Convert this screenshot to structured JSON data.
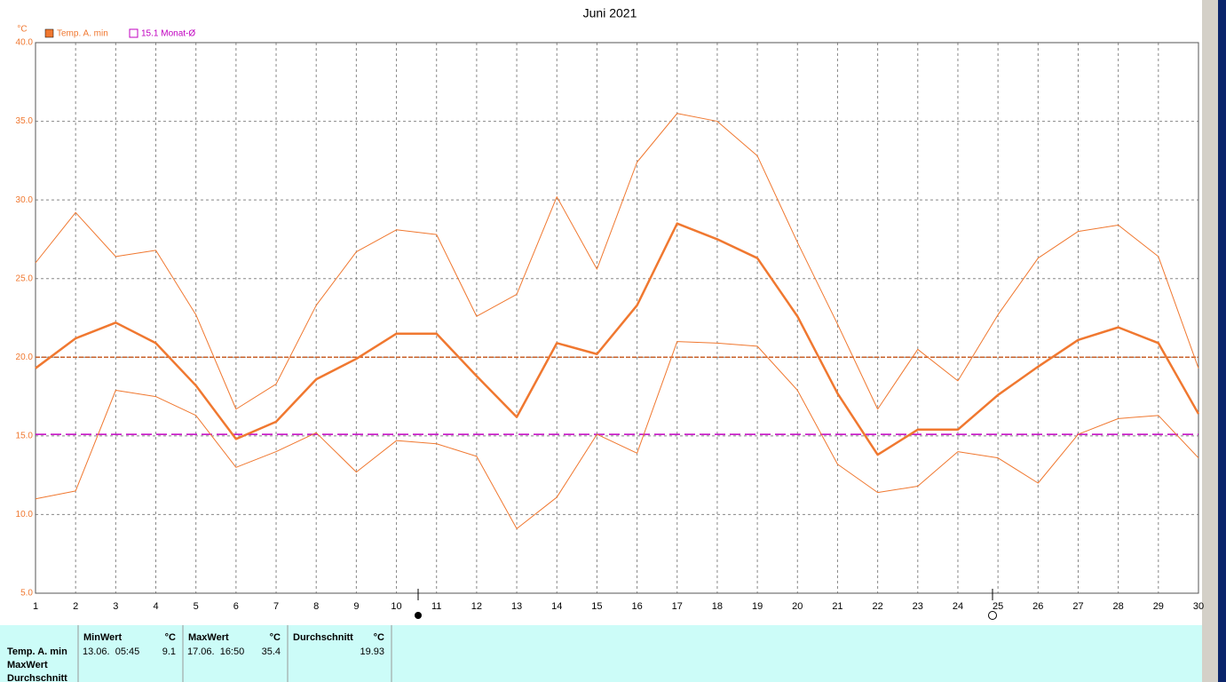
{
  "chart_data": {
    "type": "line",
    "title": "Juni 2021",
    "y_unit": "°C",
    "x": [
      1,
      2,
      3,
      4,
      5,
      6,
      7,
      8,
      9,
      10,
      11,
      12,
      13,
      14,
      15,
      16,
      17,
      18,
      19,
      20,
      21,
      22,
      23,
      24,
      25,
      26,
      27,
      28,
      29,
      30
    ],
    "xlim": [
      1,
      30
    ],
    "xticks": [
      1,
      2,
      3,
      4,
      5,
      6,
      7,
      8,
      9,
      10,
      11,
      12,
      13,
      14,
      15,
      16,
      17,
      18,
      19,
      20,
      21,
      22,
      23,
      24,
      25,
      26,
      27,
      28,
      29,
      30
    ],
    "ylim": [
      5,
      40
    ],
    "yticks": [
      {
        "value": 5,
        "label": "5.0"
      },
      {
        "value": 10,
        "label": "10.0"
      },
      {
        "value": 15,
        "label": "15.0"
      },
      {
        "value": 20,
        "label": "20.0"
      },
      {
        "value": 25,
        "label": "25.0"
      },
      {
        "value": 30,
        "label": "30.0"
      },
      {
        "value": 35,
        "label": "35.0"
      },
      {
        "value": 40,
        "label": "40.0"
      }
    ],
    "grid": true,
    "series": [
      {
        "name": "Temp. A. min",
        "color": "#f07830",
        "width": 2.5,
        "values": [
          19.3,
          21.2,
          22.2,
          20.9,
          18.2,
          14.8,
          15.9,
          18.6,
          19.9,
          21.5,
          21.5,
          18.8,
          16.2,
          20.9,
          20.2,
          23.3,
          28.5,
          27.5,
          26.3,
          22.6,
          17.7,
          13.8,
          15.4,
          15.4,
          17.6,
          19.4,
          21.1,
          21.9,
          20.9,
          16.4
        ]
      },
      {
        "color": "#f07830",
        "width": 1,
        "values": [
          26.0,
          29.2,
          26.4,
          26.8,
          22.7,
          16.7,
          18.3,
          23.3,
          26.7,
          28.1,
          27.8,
          22.6,
          24.0,
          30.2,
          25.6,
          32.4,
          35.5,
          35.0,
          32.8,
          27.3,
          22.1,
          16.7,
          20.5,
          18.5,
          22.7,
          26.3,
          28.0,
          28.4,
          26.4,
          19.3
        ]
      },
      {
        "color": "#f07830",
        "width": 1,
        "values": [
          11.0,
          11.5,
          17.9,
          17.5,
          16.3,
          13.0,
          14.0,
          15.2,
          12.7,
          14.7,
          14.5,
          13.7,
          9.1,
          11.1,
          15.1,
          13.9,
          21.0,
          20.9,
          20.7,
          17.9,
          13.2,
          11.4,
          11.8,
          14.0,
          13.6,
          12.0,
          15.1,
          16.1,
          16.3,
          13.6
        ]
      }
    ],
    "reference_lines": [
      {
        "value": 20,
        "color": "#c8602a"
      },
      {
        "value": 15.1,
        "label": "15.1 Monat-Ø",
        "color": "#c000c0"
      }
    ]
  },
  "table": {
    "row_labels": [
      "Temp. A. min",
      "MaxWert",
      "Durchschnitt"
    ],
    "columns": [
      {
        "header": "MinWert",
        "unit": "°C",
        "time": "13.06.  05:45",
        "value": "9.1"
      },
      {
        "header": "MaxWert",
        "unit": "°C",
        "time": "17.06.  16:50",
        "value": "35.4"
      },
      {
        "header": "Durchschnitt",
        "unit": "°C",
        "value": "19.93"
      }
    ]
  }
}
